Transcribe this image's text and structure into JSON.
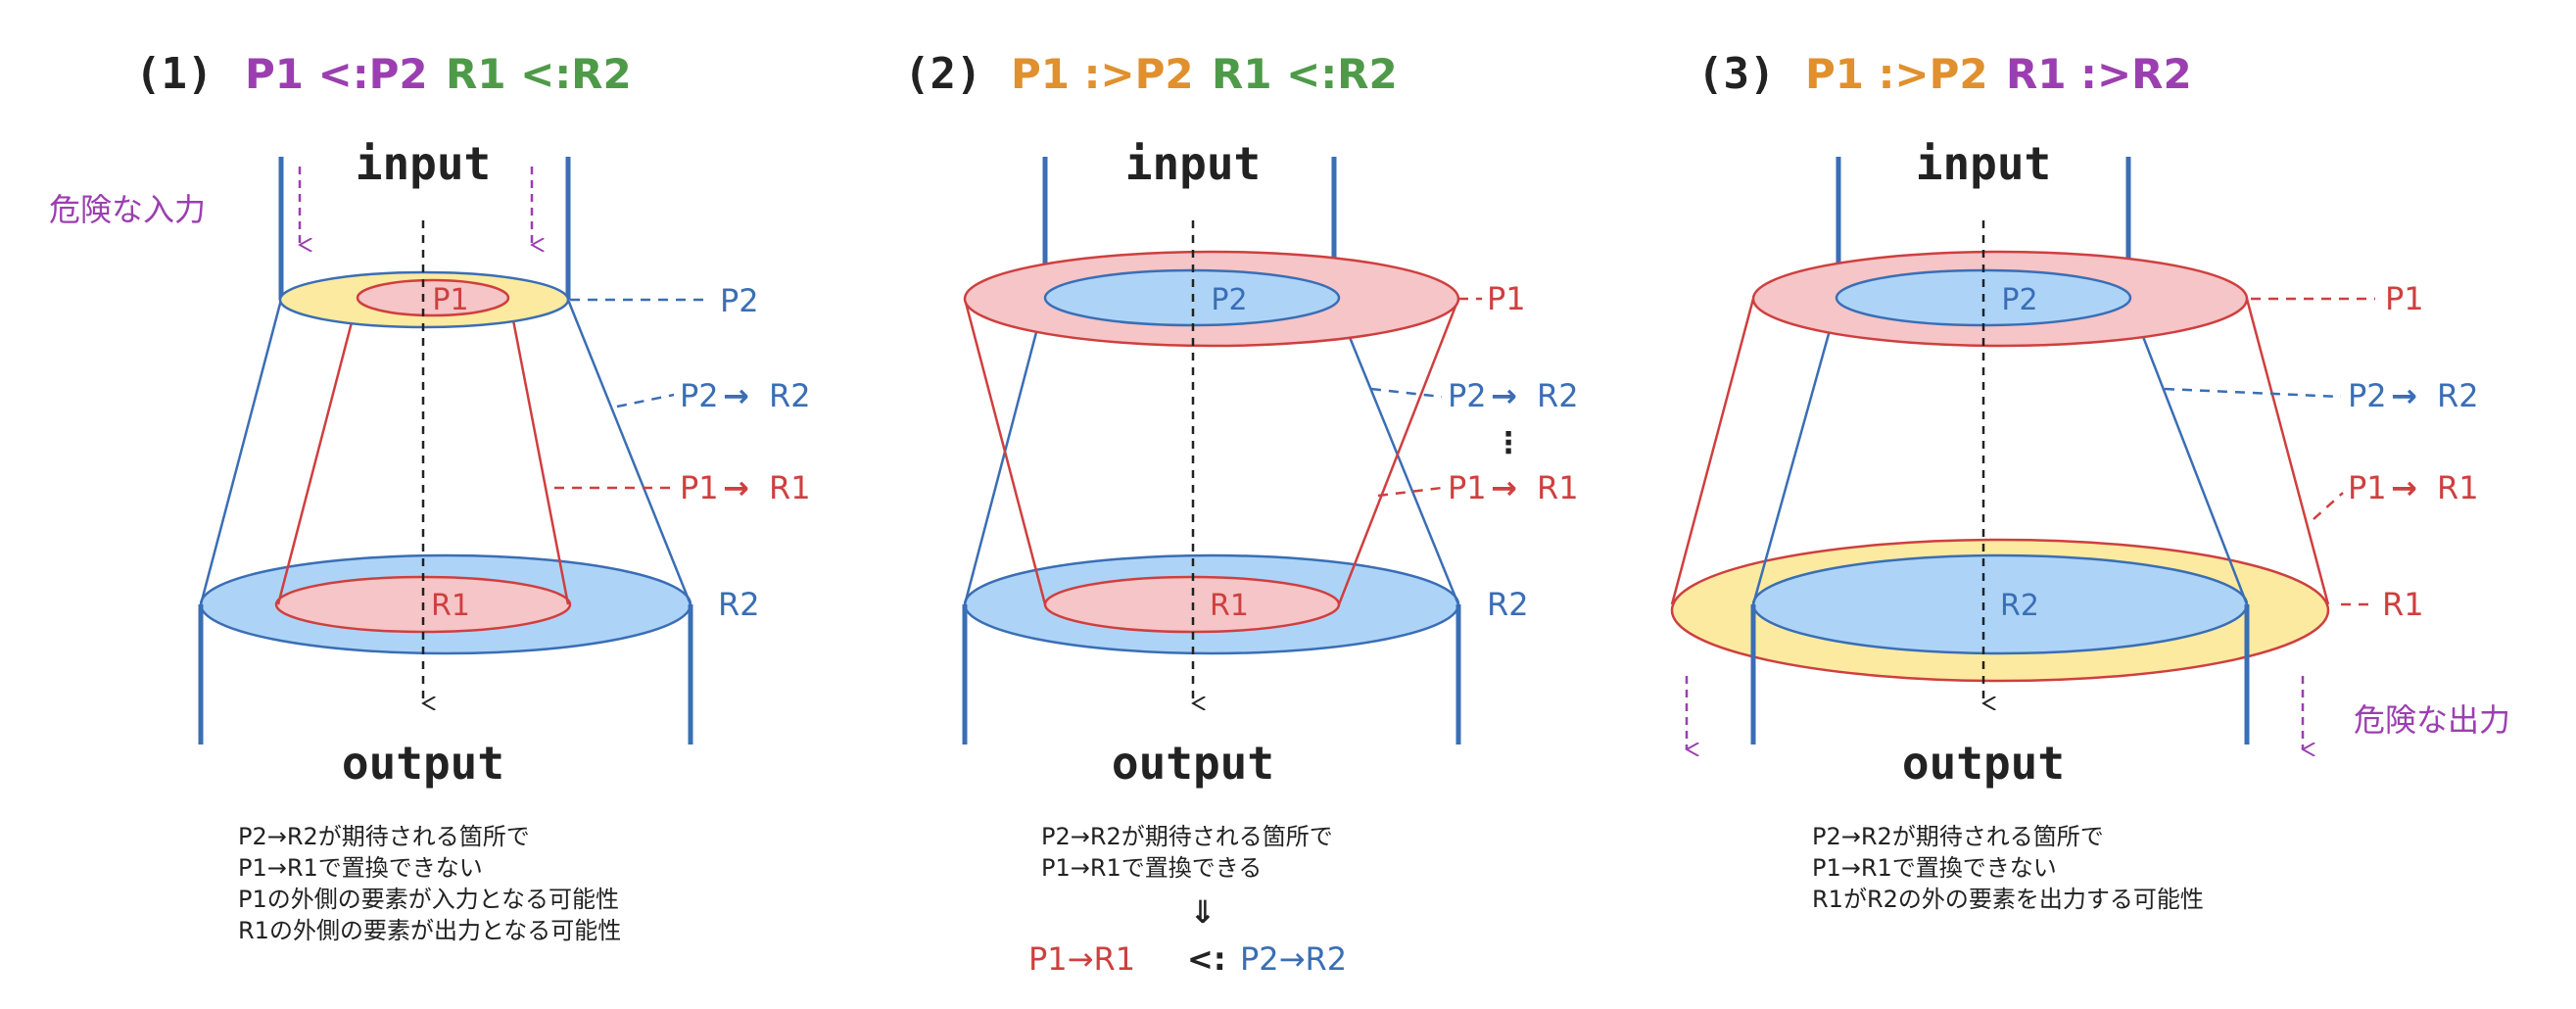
{
  "colors": {
    "purple": "#9b3fb0",
    "green": "#4e9a48",
    "orange": "#e0902e",
    "red": "#cf3f3f",
    "blue": "#3a6eb5",
    "red_fill": "#f5c5c7",
    "blue_fill": "#add4f7",
    "yellow_fill": "#fbeaa0",
    "black": "#222222"
  },
  "common": {
    "input": "input",
    "output": "output",
    "arrow": "→",
    "subtype": "<:",
    "supertype": ":>"
  },
  "panel1": {
    "num": "(1)",
    "p_rel": "P1 <:P2",
    "r_rel": "R1 <:R2",
    "danger_input": "危険な入力",
    "labels": {
      "p1": "P1",
      "p2": "P2",
      "r1": "R1",
      "r2": "R2",
      "p2r2": "P2",
      "r2b": "R2",
      "p1r1": "P1",
      "r1b": "R1"
    },
    "notes": [
      "P2→R2が期待される箇所で",
      "P1→R1で置換できない",
      "P1の外側の要素が入力となる可能性",
      "R1の外側の要素が出力となる可能性"
    ]
  },
  "panel2": {
    "num": "(2)",
    "p_rel": "P1 :>P2",
    "r_rel": "R1 <:R2",
    "dots": "⋮",
    "labels": {
      "p1": "P1",
      "p2": "P2",
      "r1": "R1",
      "r2": "R2",
      "p2r2": "P2",
      "r2b": "R2",
      "p1r1": "P1",
      "r1b": "R1"
    },
    "notes": [
      "P2→R2が期待される箇所で",
      "P1→R1で置換できる"
    ],
    "implies": "⇓",
    "conclusion_left": "P1→R1",
    "conclusion_op": "<:",
    "conclusion_right": "P2→R2"
  },
  "panel3": {
    "num": "(3)",
    "p_rel": "P1 :>P2",
    "r_rel": "R1 :>R2",
    "danger_output": "危険な出力",
    "labels": {
      "p1": "P1",
      "p2": "P2",
      "r1": "R1",
      "r2": "R2",
      "p2r2": "P2",
      "r2b": "R2",
      "p1r1": "P1",
      "r1b": "R1"
    },
    "notes": [
      "P2→R2が期待される箇所で",
      "P1→R1で置換できない",
      "R1がR2の外の要素を出力する可能性"
    ]
  }
}
